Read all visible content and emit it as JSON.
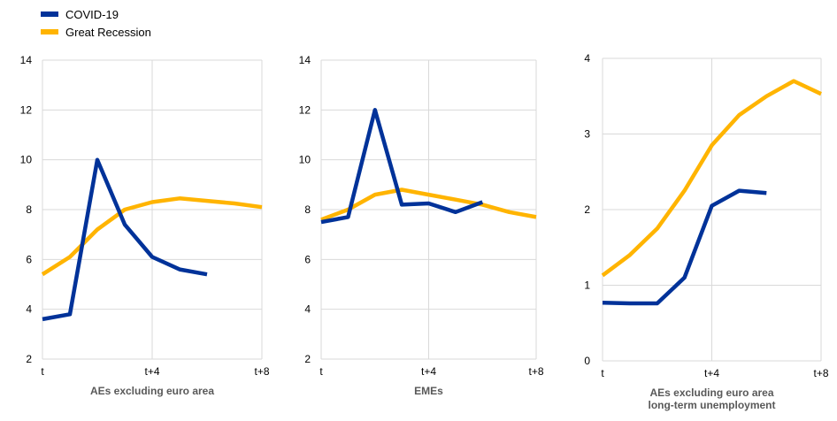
{
  "legend": [
    {
      "name": "COVID-19",
      "color": "#003299"
    },
    {
      "name": "Great Recession",
      "color": "#FFB400"
    }
  ],
  "chart_data": [
    {
      "type": "line",
      "xlabel": [
        "AEs excluding euro area"
      ],
      "ylim": [
        2,
        14
      ],
      "yticks": [
        2,
        4,
        6,
        8,
        10,
        12,
        14
      ],
      "xlim": [
        0,
        8
      ],
      "xticks": [
        {
          "v": 0,
          "label": "t"
        },
        {
          "v": 4,
          "label": "t+4"
        },
        {
          "v": 8,
          "label": "t+8"
        }
      ],
      "grid": true,
      "series": [
        {
          "name": "COVID-19",
          "color": "#003299",
          "x": [
            0,
            1,
            2,
            3,
            4,
            5,
            6
          ],
          "values": [
            3.6,
            3.8,
            10.0,
            7.4,
            6.1,
            5.6,
            5.4
          ]
        },
        {
          "name": "Great Recession",
          "color": "#FFB400",
          "x": [
            0,
            1,
            2,
            3,
            4,
            5,
            6,
            7,
            8
          ],
          "values": [
            5.4,
            6.1,
            7.2,
            8.0,
            8.3,
            8.45,
            8.35,
            8.25,
            8.1
          ]
        }
      ]
    },
    {
      "type": "line",
      "xlabel": [
        "EMEs"
      ],
      "ylim": [
        2,
        14
      ],
      "yticks": [
        2,
        4,
        6,
        8,
        10,
        12,
        14
      ],
      "xlim": [
        0,
        8
      ],
      "xticks": [
        {
          "v": 0,
          "label": "t"
        },
        {
          "v": 4,
          "label": "t+4"
        },
        {
          "v": 8,
          "label": "t+8"
        }
      ],
      "grid": true,
      "series": [
        {
          "name": "COVID-19",
          "color": "#003299",
          "x": [
            0,
            1,
            2,
            3,
            4,
            5,
            6
          ],
          "values": [
            7.5,
            7.7,
            12.0,
            8.2,
            8.25,
            7.9,
            8.3
          ]
        },
        {
          "name": "Great Recession",
          "color": "#FFB400",
          "x": [
            0,
            1,
            2,
            3,
            4,
            5,
            6,
            7,
            8
          ],
          "values": [
            7.6,
            8.0,
            8.6,
            8.8,
            8.6,
            8.4,
            8.2,
            7.9,
            7.7
          ]
        }
      ]
    },
    {
      "type": "line",
      "xlabel": [
        "AEs excluding euro area",
        "long-term unemployment"
      ],
      "ylim": [
        0,
        4
      ],
      "yticks": [
        0,
        1,
        2,
        3,
        4
      ],
      "xlim": [
        0,
        8
      ],
      "xticks": [
        {
          "v": 0,
          "label": "t"
        },
        {
          "v": 4,
          "label": "t+4"
        },
        {
          "v": 8,
          "label": "t+8"
        }
      ],
      "grid": true,
      "series": [
        {
          "name": "COVID-19",
          "color": "#003299",
          "x": [
            0,
            1,
            2,
            3,
            4,
            5,
            6
          ],
          "values": [
            0.77,
            0.76,
            0.76,
            1.1,
            2.05,
            2.25,
            2.22
          ]
        },
        {
          "name": "Great Recession",
          "color": "#FFB400",
          "x": [
            0,
            1,
            2,
            3,
            4,
            5,
            6,
            7,
            8
          ],
          "values": [
            1.13,
            1.4,
            1.75,
            2.25,
            2.85,
            3.25,
            3.5,
            3.7,
            3.53
          ]
        }
      ]
    }
  ]
}
